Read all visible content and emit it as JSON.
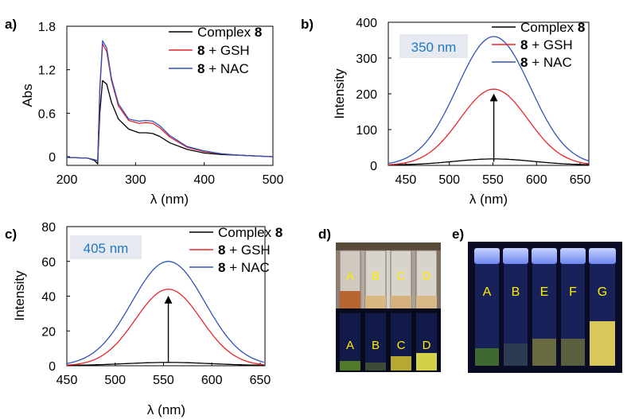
{
  "colors": {
    "black": "#000000",
    "red": "#e8262b",
    "blue": "#3153b8",
    "badge_text": "#1f78c1",
    "badge_bg": "#e6eaf0"
  },
  "chart_data": [
    {
      "panel": "a)",
      "type": "line",
      "xlabel": "λ (nm)",
      "ylabel": "Abs",
      "xlim": [
        200,
        500
      ],
      "ylim": [
        -0.12,
        1.8
      ],
      "xticks": [
        "200",
        "300",
        "400",
        "500"
      ],
      "yticks": [
        "0",
        "0.6",
        "1.2",
        "1.8"
      ],
      "legend": {
        "placement": "top-right",
        "entries": [
          {
            "bold": "",
            "rest": "Complex ",
            "suffix": "8"
          },
          {
            "bold": "8",
            "rest": " + GSH",
            "suffix": ""
          },
          {
            "bold": "8",
            "rest": " + NAC",
            "suffix": ""
          }
        ]
      },
      "series": [
        {
          "name": "Complex 8",
          "color": "black",
          "x": [
            200,
            230,
            240,
            245,
            248,
            252,
            258,
            265,
            275,
            290,
            305,
            315,
            325,
            335,
            350,
            375,
            400,
            425,
            450,
            500
          ],
          "y": [
            -0.01,
            -0.02,
            -0.05,
            -0.1,
            0.6,
            1.05,
            1.0,
            0.75,
            0.52,
            0.38,
            0.33,
            0.33,
            0.32,
            0.28,
            0.19,
            0.1,
            0.05,
            0.03,
            0.02,
            0.0
          ]
        },
        {
          "name": "8 + GSH",
          "color": "red",
          "x": [
            200,
            230,
            240,
            245,
            248,
            252,
            258,
            265,
            275,
            290,
            305,
            315,
            325,
            335,
            350,
            375,
            400,
            425,
            450,
            500
          ],
          "y": [
            -0.01,
            -0.02,
            -0.04,
            -0.06,
            0.9,
            1.56,
            1.45,
            1.05,
            0.7,
            0.5,
            0.46,
            0.47,
            0.46,
            0.4,
            0.27,
            0.13,
            0.07,
            0.04,
            0.02,
            0.0
          ]
        },
        {
          "name": "8 + NAC",
          "color": "blue",
          "x": [
            200,
            230,
            240,
            245,
            248,
            252,
            258,
            265,
            275,
            290,
            305,
            315,
            325,
            335,
            350,
            375,
            400,
            425,
            450,
            500
          ],
          "y": [
            -0.01,
            -0.02,
            -0.04,
            -0.06,
            0.95,
            1.6,
            1.5,
            1.08,
            0.73,
            0.52,
            0.49,
            0.5,
            0.49,
            0.43,
            0.29,
            0.14,
            0.08,
            0.04,
            0.02,
            0.0
          ]
        }
      ]
    },
    {
      "panel": "b)",
      "type": "line",
      "xlabel": "λ (nm)",
      "ylabel": "Intensity",
      "xlim": [
        430,
        660
      ],
      "ylim": [
        0,
        400
      ],
      "xticks": [
        "450",
        "500",
        "550",
        "600",
        "650"
      ],
      "yticks": [
        "0",
        "100",
        "200",
        "300",
        "400"
      ],
      "badge": "350 nm",
      "legend": {
        "placement": "top-right",
        "entries": [
          {
            "bold": "",
            "rest": "Complex ",
            "suffix": "8"
          },
          {
            "bold": "8",
            "rest": " + GSH",
            "suffix": ""
          },
          {
            "bold": "8",
            "rest": " + NAC",
            "suffix": ""
          }
        ]
      },
      "arrow": {
        "x": 551,
        "from": 10,
        "to": 190
      },
      "series": [
        {
          "name": "Complex 8",
          "color": "black",
          "peak_x": 551,
          "peak_y": 17,
          "width": 45,
          "baseline": 1
        },
        {
          "name": "8 + GSH",
          "color": "red",
          "peak_x": 551,
          "peak_y": 213,
          "width": 39,
          "baseline": 0
        },
        {
          "name": "8 + NAC",
          "color": "blue",
          "peak_x": 551,
          "peak_y": 360,
          "width": 42,
          "baseline": 0
        }
      ]
    },
    {
      "panel": "c)",
      "type": "line",
      "xlabel": "λ (nm)",
      "ylabel": "Intensity",
      "xlim": [
        450,
        655
      ],
      "ylim": [
        0,
        80
      ],
      "xticks": [
        "450",
        "500",
        "550",
        "600",
        "650"
      ],
      "yticks": [
        "0",
        "20",
        "40",
        "60",
        "80"
      ],
      "badge": "405 nm",
      "legend": {
        "placement": "top-right",
        "entries": [
          {
            "bold": "",
            "rest": "Complex ",
            "suffix": "8"
          },
          {
            "bold": "8",
            "rest": " + GSH",
            "suffix": ""
          },
          {
            "bold": "8",
            "rest": " + NAC",
            "suffix": ""
          }
        ]
      },
      "arrow": {
        "x": 555,
        "from": 2,
        "to": 38
      },
      "series": [
        {
          "name": "Complex 8",
          "color": "black",
          "peak_x": 555,
          "peak_y": 1.8,
          "width": 45,
          "baseline": 0.1
        },
        {
          "name": "8 + GSH",
          "color": "red",
          "peak_x": 555,
          "peak_y": 44,
          "width": 34,
          "baseline": 0
        },
        {
          "name": "8 + NAC",
          "color": "blue",
          "peak_x": 555,
          "peak_y": 60,
          "width": 38,
          "baseline": 0
        }
      ]
    }
  ],
  "photos": {
    "d_label": "d)",
    "d_top": [
      "A",
      "B",
      "C",
      "D"
    ],
    "d_bottom": [
      "A",
      "B",
      "C",
      "D"
    ],
    "e_label": "e)",
    "e_vials": [
      "A",
      "B",
      "E",
      "F",
      "G"
    ]
  }
}
